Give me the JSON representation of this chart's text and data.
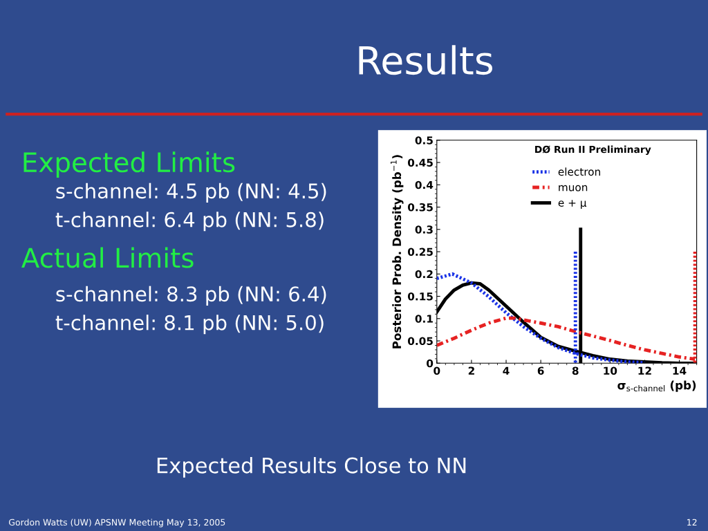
{
  "chart_data": [
    {
      "type": "other",
      "title": "Results",
      "annotations": [
        "Expected Limits",
        "s-channel: 4.5 pb (NN: 4.5)",
        "t-channel: 6.4 pb (NN: 5.8)",
        "Actual Limits",
        "s-channel: 8.3 pb (NN: 6.4)",
        "t-channel: 8.1 pb (NN: 5.0)",
        "Expected Results Close to NN",
        "Gordon Watts (UW) APSNW Meeting May 13, 2005",
        "12"
      ]
    },
    {
      "type": "line",
      "xlabel": "σ$_{s-channel}$ (pb)",
      "ylabel": "Posterior Prob. Density (pb$^{−1}$)",
      "annotations": [
        "DØ Run II Preliminary"
      ],
      "xlim": [
        0,
        15
      ],
      "xticks": [
        0,
        2,
        4,
        6,
        8,
        10,
        12,
        14
      ],
      "ylim": [
        0,
        0.5
      ],
      "yticks": [
        0,
        0.05,
        0.1,
        0.15,
        0.2,
        0.25,
        0.3,
        0.35,
        0.4,
        0.45,
        0.5
      ],
      "grid": false,
      "legend": "top",
      "series": [
        {
          "name": "electron",
          "color": "#1a33e6",
          "line_style": "dotted",
          "x": [
            0,
            0.9,
            2,
            3,
            4,
            5,
            6,
            7,
            8,
            9,
            10,
            11,
            12
          ],
          "values": [
            0.19,
            0.2,
            0.18,
            0.149,
            0.113,
            0.082,
            0.056,
            0.035,
            0.022,
            0.012,
            0.007,
            0.003,
            0.001
          ]
        },
        {
          "name": "muon",
          "color": "#e62222",
          "line_style": "dashdot",
          "x": [
            0,
            1,
            2,
            3,
            4,
            4.5,
            5,
            6,
            7,
            8,
            9,
            10,
            11,
            12,
            13,
            14,
            14.9
          ],
          "values": [
            0.04,
            0.056,
            0.074,
            0.09,
            0.101,
            0.101,
            0.097,
            0.09,
            0.082,
            0.071,
            0.061,
            0.051,
            0.04,
            0.03,
            0.022,
            0.014,
            0.009
          ]
        },
        {
          "name": "e + μ",
          "color": "#000000",
          "line_style": "solid",
          "x": [
            0,
            0.5,
            1,
            1.5,
            2,
            2.5,
            3,
            4,
            5,
            6,
            7,
            8,
            9,
            10,
            11,
            12,
            13,
            14,
            15
          ],
          "values": [
            0.115,
            0.144,
            0.164,
            0.175,
            0.18,
            0.178,
            0.164,
            0.128,
            0.092,
            0.058,
            0.038,
            0.027,
            0.017,
            0.009,
            0.005,
            0.003,
            0.001,
            0.0,
            0.0
          ]
        },
        {
          "color": "#1a33e6",
          "line_style": "dotted",
          "x": [
            8,
            8
          ],
          "values": [
            0.25,
            0
          ]
        },
        {
          "color": "#000000",
          "line_style": "solid",
          "x": [
            8.3,
            8.3
          ],
          "values": [
            0.3,
            0
          ]
        },
        {
          "color": "#e62222",
          "line_style": "dotted",
          "x": [
            14.9,
            14.9
          ],
          "values": [
            0.25,
            0
          ]
        }
      ]
    }
  ]
}
